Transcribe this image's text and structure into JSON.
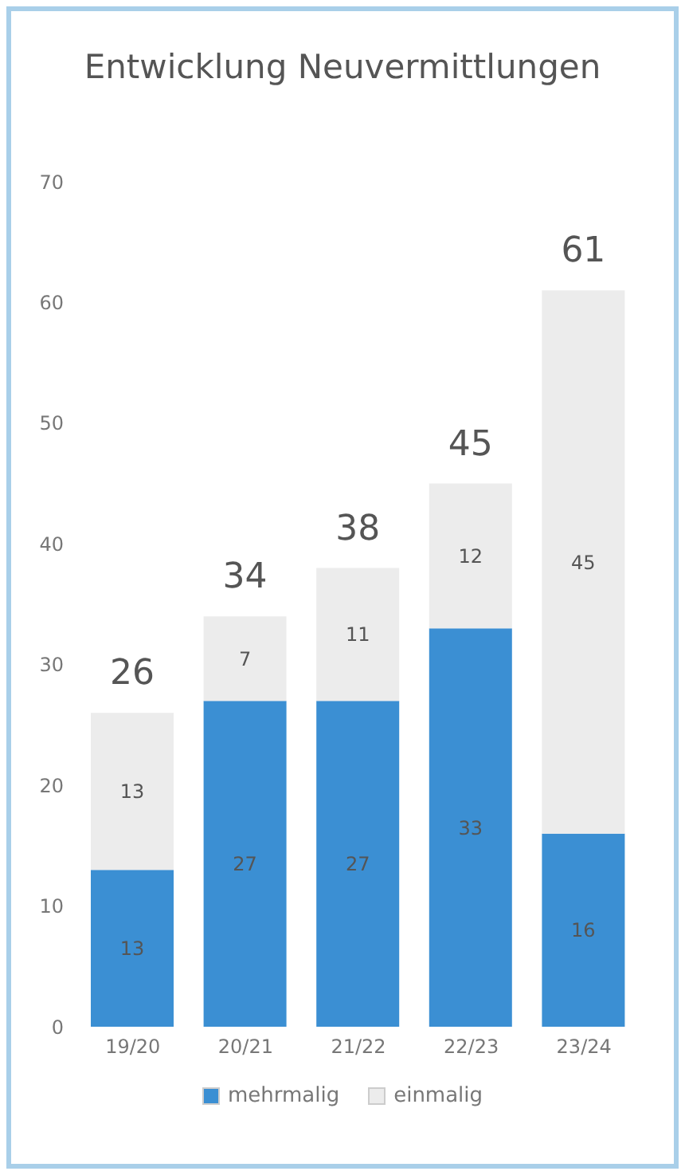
{
  "chart_data": {
    "type": "bar",
    "title": "Entwicklung Neuvermittlungen",
    "categories": [
      "19/20",
      "20/21",
      "21/22",
      "22/23",
      "23/24"
    ],
    "stacked": true,
    "series": [
      {
        "name": "mehrmalig",
        "color": "#3b8fd3",
        "values": [
          13,
          27,
          27,
          33,
          16
        ]
      },
      {
        "name": "einmalig",
        "color": "#ececec",
        "values": [
          13,
          7,
          11,
          12,
          45
        ]
      }
    ],
    "totals": [
      "26",
      "34",
      "38",
      "45",
      "61"
    ],
    "ylim": [
      0,
      70
    ],
    "yticks": [
      0,
      10,
      20,
      30,
      40,
      50,
      60,
      70
    ],
    "grid": false,
    "legend": "bottom",
    "data_labels": true
  }
}
